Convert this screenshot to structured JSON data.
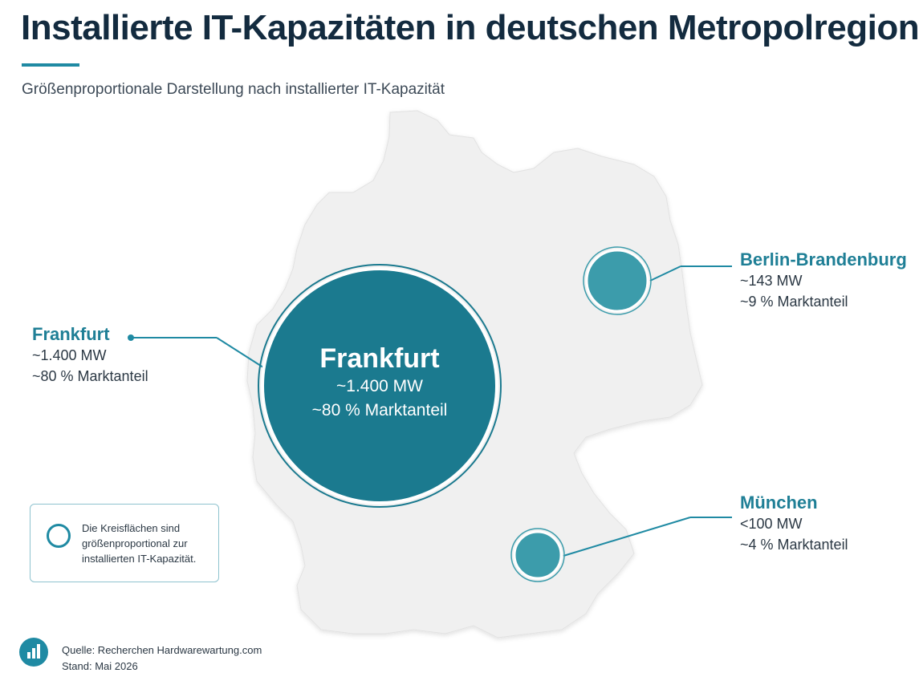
{
  "title": "Installierte IT-Kapazitäten in deutschen Metropolregionen",
  "subtitle": "Größenproportionale Darstellung nach installierter IT-Kapazität",
  "colors": {
    "accent": "#1f8aa3",
    "frankfurt_fill": "#1b7a8f",
    "small_circle_fill": "#3c9cab",
    "map_fill": "#f0f0f0",
    "title": "#132b3f"
  },
  "map": {
    "region": "Deutschland",
    "regions": [
      {
        "id": "frankfurt",
        "circle": {
          "name": "Frankfurt",
          "capacity": "~1.400 MW",
          "share": "~80 % Marktanteil"
        },
        "callout": {
          "name": "Frankfurt",
          "capacity": "~1.400 MW",
          "share": "~80 % Marktanteil"
        }
      },
      {
        "id": "berlin",
        "callout": {
          "name": "Berlin-Brandenburg",
          "capacity": "~143 MW",
          "share": "~9 % Marktanteil"
        }
      },
      {
        "id": "muenchen",
        "callout": {
          "name": "München",
          "capacity": "<100 MW",
          "share": "~4 % Marktanteil"
        }
      }
    ]
  },
  "legend": {
    "text": "Die Kreisflächen sind größenproportional zur installierten IT-Kapazität.",
    "icon": "circle-outline-icon"
  },
  "source": {
    "line1": "Quelle: Recherchen Hardwarewartung.com",
    "line2": "Stand: Mai 2026",
    "icon": "bar-chart-icon"
  }
}
